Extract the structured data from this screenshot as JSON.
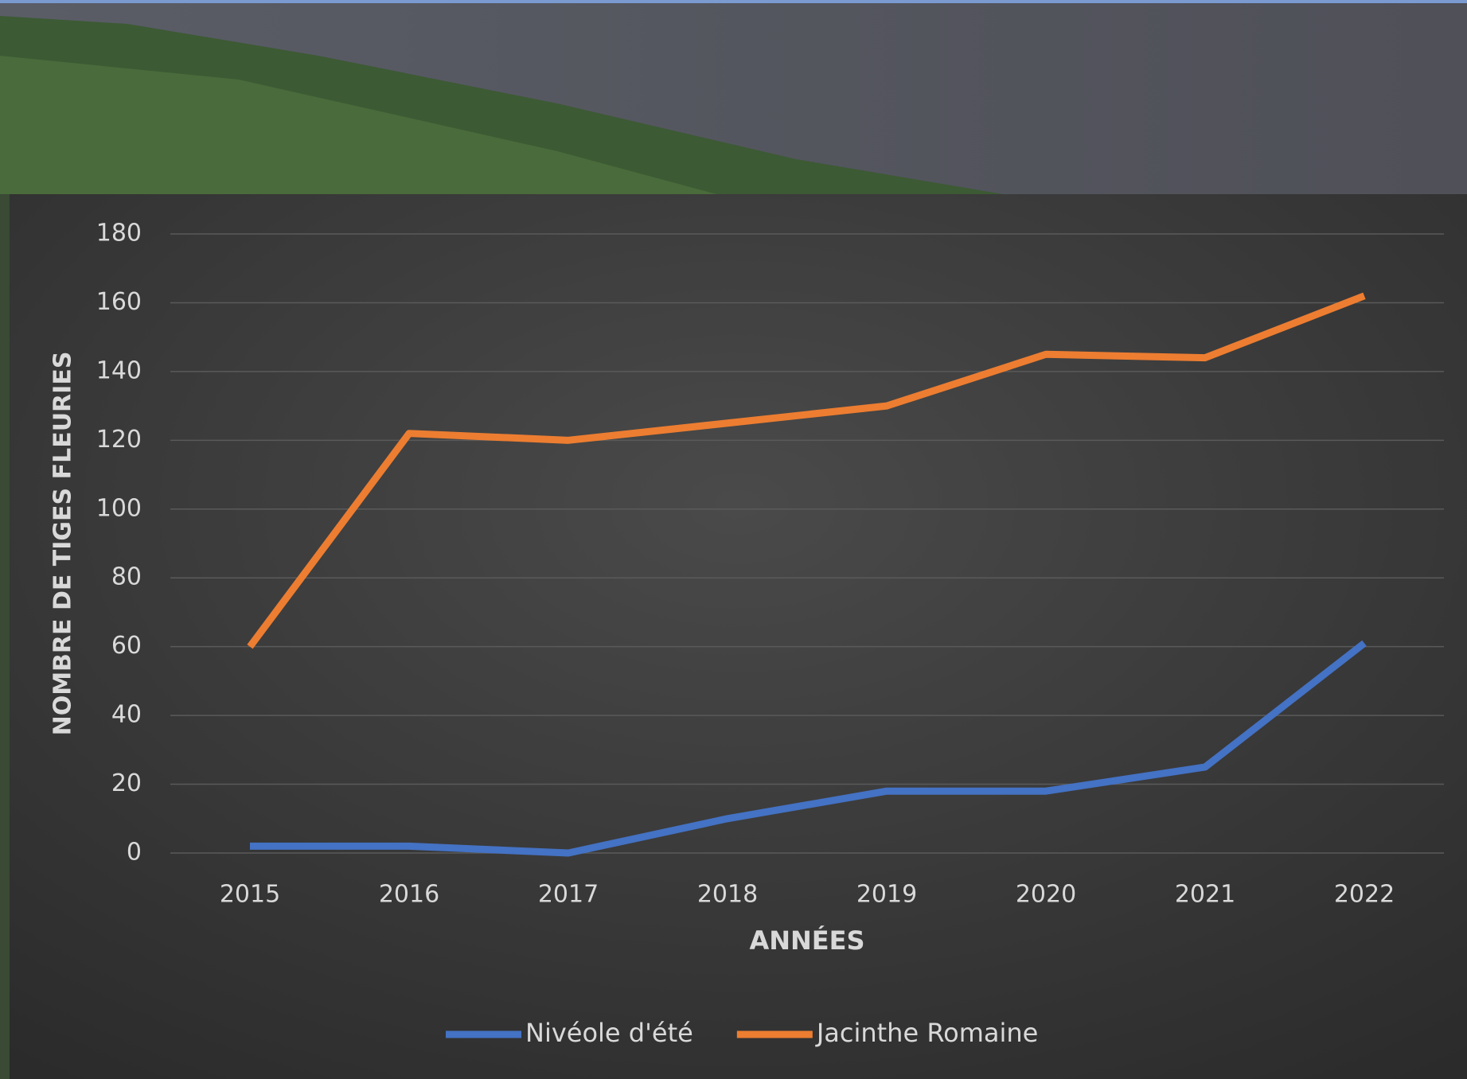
{
  "chart_data": {
    "type": "line",
    "xlabel": "ANNÉES",
    "ylabel": "NOMBRE DE TIGES FLEURIES",
    "categories": [
      "2015",
      "2016",
      "2017",
      "2018",
      "2019",
      "2020",
      "2021",
      "2022"
    ],
    "series": [
      {
        "name": "Nivéole d'été",
        "color": "#4472c4",
        "values": [
          2,
          2,
          0,
          10,
          18,
          18,
          25,
          61
        ]
      },
      {
        "name": "Jacinthe Romaine",
        "color": "#ed7d31",
        "values": [
          60,
          122,
          120,
          125,
          130,
          145,
          144,
          162
        ]
      }
    ],
    "ylim": [
      0,
      180
    ],
    "yticks": [
      0,
      20,
      40,
      60,
      80,
      100,
      120,
      140,
      160,
      180
    ],
    "grid": true,
    "legend": "bottom"
  }
}
